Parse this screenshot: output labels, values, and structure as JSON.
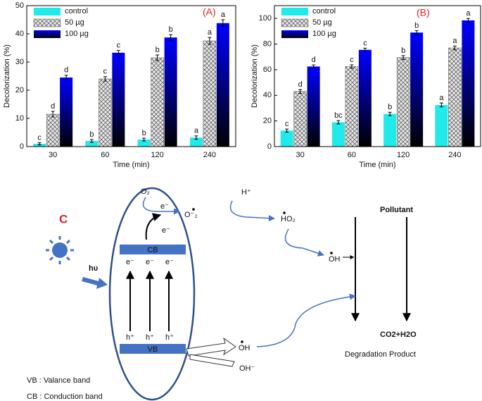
{
  "chart_data": [
    {
      "type": "bar",
      "panel": "(A)",
      "y_label": "Decolorization (%)",
      "x_label": "Time (min)",
      "categories": [
        "30",
        "60",
        "120",
        "240"
      ],
      "ylim": [
        0,
        50
      ],
      "yticks": [
        0,
        10,
        20,
        30,
        40,
        50
      ],
      "series": [
        {
          "name": "control",
          "color": "#22eaea",
          "fill_style": "solid",
          "values": [
            1,
            2,
            2.5,
            3.2
          ],
          "errors": [
            0.4,
            0.5,
            0.5,
            0.6
          ],
          "significance": [
            "c",
            "b",
            "b",
            "a"
          ]
        },
        {
          "name": "50 µg",
          "color": "#b0b0b0",
          "fill_style": "hatch",
          "values": [
            11.5,
            24,
            31.5,
            37.5
          ],
          "errors": [
            1,
            0.8,
            1,
            1.2
          ],
          "significance": [
            "d",
            "c",
            "b",
            "a"
          ]
        },
        {
          "name": "100 µg",
          "color": "#0000ff",
          "fill_style": "gradient",
          "values": [
            24.5,
            33.3,
            38.7,
            43.8
          ],
          "errors": [
            0.8,
            0.8,
            1,
            1.2
          ],
          "significance": [
            "d",
            "c",
            "b",
            "a"
          ]
        }
      ]
    },
    {
      "type": "bar",
      "panel": "(B)",
      "y_label": "Decolorization (%)",
      "x_label": "Time (min)",
      "categories": [
        "30",
        "60",
        "120",
        "240"
      ],
      "ylim": [
        0,
        110
      ],
      "yticks": [
        0,
        20,
        40,
        60,
        80,
        100
      ],
      "series": [
        {
          "name": "control",
          "color": "#22eaea",
          "fill_style": "solid",
          "values": [
            12.5,
            19,
            25.5,
            32.5
          ],
          "errors": [
            1.2,
            1.3,
            1.3,
            1.5
          ],
          "significance": [
            "c",
            "bc",
            "b",
            "a"
          ]
        },
        {
          "name": "50 µg",
          "color": "#b0b0b0",
          "fill_style": "hatch",
          "values": [
            43,
            62.5,
            69.5,
            77
          ],
          "errors": [
            1.5,
            1.3,
            1.5,
            1.5
          ],
          "significance": [
            "d",
            "c",
            "b",
            "a"
          ]
        },
        {
          "name": "100 µg",
          "color": "#0000ff",
          "fill_style": "gradient",
          "values": [
            62.5,
            75.5,
            89,
            98.5
          ],
          "errors": [
            1.2,
            1.3,
            1.5,
            1.5
          ],
          "significance": [
            "d",
            "c",
            "b",
            "a"
          ]
        }
      ]
    }
  ],
  "diagram": {
    "label": "C",
    "o2": "O₂",
    "e_out": "e⁻",
    "superoxide": "O⁻₂",
    "h_plus": "H⁺",
    "ho2": "HO₂",
    "pollutant": "Pollutant",
    "cb": "CB",
    "e_up": "e⁻",
    "e_cb": [
      "e⁻",
      "e⁻",
      "e⁻"
    ],
    "hv": "hυ",
    "oh_top": "OH",
    "h_vb": [
      "h⁺",
      "h⁺",
      "h⁺"
    ],
    "vb": "VB",
    "oh_vb": "OH",
    "oh_minus": "OH⁻",
    "product": "CO2+H2O",
    "degradation": "Degradation Product",
    "legend_vb": "VB : Valance band",
    "legend_cb": "CB : Conduction band"
  }
}
